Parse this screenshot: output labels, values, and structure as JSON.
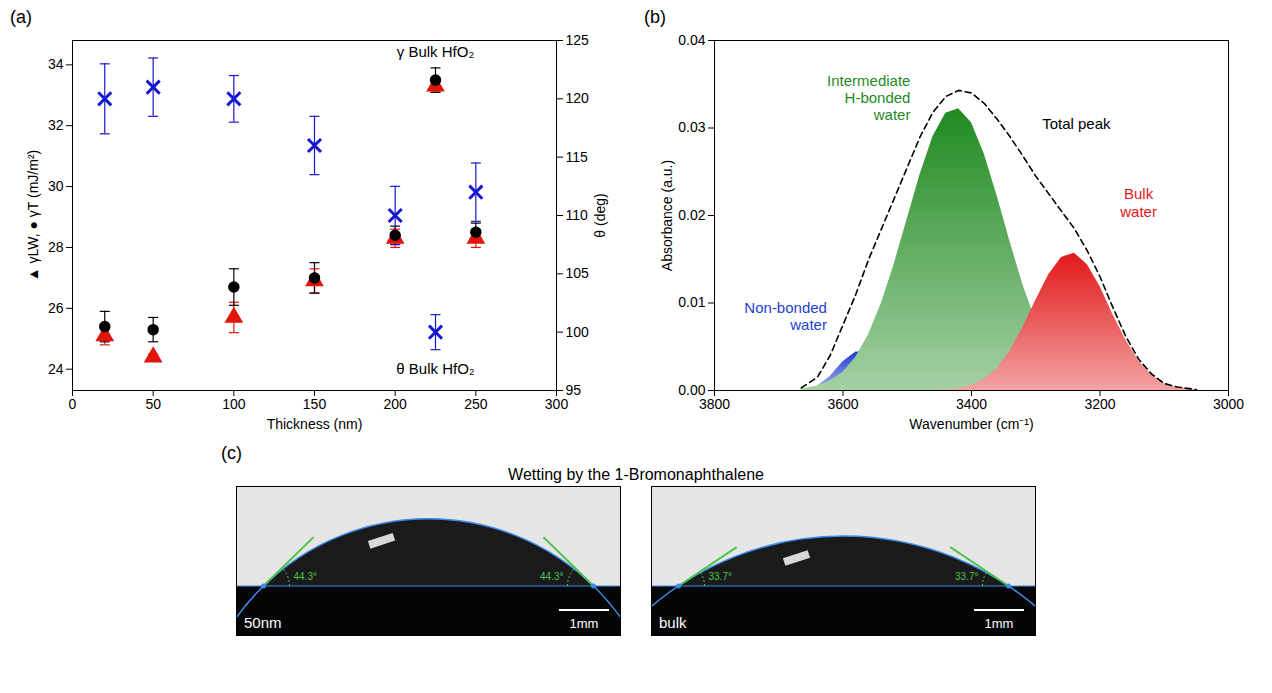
{
  "chart_data": [
    {
      "panel": "(a)",
      "type": "scatter",
      "x_label": "Thickness (nm)",
      "y_label": "▲ γLW, ● γT (mJ/m²)",
      "y2_label": "θ (deg)",
      "xlim": [
        0,
        300
      ],
      "xticks": [
        0,
        50,
        100,
        150,
        200,
        250,
        300
      ],
      "ylim": [
        23.3,
        34.8
      ],
      "yticks": [
        24,
        26,
        28,
        30,
        32,
        34
      ],
      "y2lim": [
        95,
        125
      ],
      "y2ticks": [
        95,
        100,
        105,
        110,
        115,
        120,
        125
      ],
      "grid": false,
      "x": [
        20,
        50,
        100,
        150,
        200,
        225,
        250
      ],
      "series": [
        {
          "name": "γLW",
          "color": "#e2150b",
          "marker": "triangle",
          "values": [
            25.1,
            24.4,
            25.7,
            26.9,
            28.3,
            33.3,
            28.3
          ],
          "errors": [
            0.3,
            0.1,
            0.5,
            0.4,
            0.3,
            0.2,
            0.3
          ]
        },
        {
          "name": "γT",
          "color": "#000000",
          "marker": "circle",
          "values": [
            25.4,
            25.3,
            26.7,
            27.0,
            28.4,
            33.5,
            28.5
          ],
          "errors": [
            0.5,
            0.4,
            0.6,
            0.5,
            0.3,
            0.4,
            0.3
          ]
        },
        {
          "name": "θ",
          "color": "#1717d0",
          "marker": "times",
          "axis": "y2",
          "values": [
            120,
            121,
            120,
            116,
            110,
            100,
            112
          ],
          "errors": [
            3,
            2.5,
            2,
            2.5,
            2.5,
            1.5,
            2.5
          ]
        }
      ],
      "annotations": [
        {
          "text": "γ Bulk HfO₂",
          "x": 225,
          "y": 34.4
        },
        {
          "text": "θ Bulk HfO₂",
          "x": 225,
          "y": 96.8,
          "axis": "y2"
        }
      ]
    },
    {
      "panel": "(b)",
      "type": "area",
      "x_label": "Wavenumber (cm⁻¹)",
      "y_label": "Absorbance (a.u.)",
      "xlim": [
        3800,
        3000
      ],
      "xticks": [
        3800,
        3600,
        3400,
        3200,
        3000
      ],
      "ylim": [
        0,
        0.04
      ],
      "yticks": [
        {
          "value": 0,
          "label": "0.00"
        },
        {
          "value": 0.01,
          "label": "0.01"
        },
        {
          "value": 0.02,
          "label": "0.02"
        },
        {
          "value": 0.03,
          "label": "0.03"
        },
        {
          "value": 0.04,
          "label": "0.04"
        }
      ],
      "grid": false,
      "x": [
        3665,
        3640,
        3620,
        3600,
        3580,
        3560,
        3540,
        3520,
        3500,
        3480,
        3460,
        3440,
        3420,
        3400,
        3380,
        3360,
        3340,
        3320,
        3300,
        3280,
        3260,
        3240,
        3220,
        3200,
        3180,
        3160,
        3140,
        3120,
        3100,
        3080,
        3050
      ],
      "series": [
        {
          "name": "Non-bonded water",
          "type": "area",
          "color": "#1f3fd0",
          "values": [
            0,
            0.0005,
            0.0016,
            0.0033,
            0.0044,
            0.0044,
            0.0033,
            0.0017,
            0.0006,
            0.0001,
            null,
            null,
            null,
            null,
            null,
            null,
            null,
            null,
            null,
            null,
            null,
            null,
            null,
            null,
            null,
            null,
            null,
            null,
            null,
            null,
            null
          ]
        },
        {
          "name": "Intermediate H-bonded water",
          "type": "area",
          "color": "#1f8a1f",
          "values": [
            0.0002,
            0.0005,
            0.0011,
            0.0021,
            0.0038,
            0.0064,
            0.01,
            0.0145,
            0.0196,
            0.0247,
            0.029,
            0.0317,
            0.0322,
            0.0306,
            0.027,
            0.0222,
            0.017,
            0.0121,
            0.008,
            0.005,
            0.0029,
            0.0015,
            0.0008,
            0.0004,
            0.0002,
            null,
            null,
            null,
            null,
            null,
            null
          ]
        },
        {
          "name": "Bulk water",
          "type": "area",
          "color": "#e21818",
          "values": [
            null,
            null,
            null,
            null,
            null,
            null,
            null,
            null,
            null,
            null,
            0,
            0.0001,
            0.0002,
            0.0006,
            0.0013,
            0.0025,
            0.0045,
            0.0072,
            0.0103,
            0.0132,
            0.0152,
            0.0157,
            0.0144,
            0.0119,
            0.0087,
            0.0058,
            0.0034,
            0.0018,
            0.0008,
            0.0004,
            0.0001
          ]
        },
        {
          "name": "Total peak",
          "type": "line",
          "line_style": "dashed",
          "color": "#000000",
          "values": [
            0.0003,
            0.0015,
            0.004,
            0.0075,
            0.011,
            0.015,
            0.0185,
            0.022,
            0.0255,
            0.029,
            0.0318,
            0.0336,
            0.0343,
            0.034,
            0.0328,
            0.031,
            0.029,
            0.0268,
            0.0245,
            0.0225,
            0.0205,
            0.0185,
            0.016,
            0.013,
            0.0095,
            0.0062,
            0.0036,
            0.0019,
            0.0008,
            0.0004,
            0.0001
          ]
        }
      ],
      "annotations": [
        {
          "text": "Non-bonded\nwater",
          "x": 3625,
          "y": 0.0085,
          "color": "#1f3fd0",
          "anchor": "end"
        },
        {
          "text": "Intermediate\nH-bonded\nwater",
          "x": 3495,
          "y": 0.0335,
          "color": "#1f8a1f",
          "anchor": "end"
        },
        {
          "text": "Total peak",
          "x": 3290,
          "y": 0.0305,
          "color": "#000000",
          "anchor": "start"
        },
        {
          "text": "Bulk\nwater",
          "x": 3140,
          "y": 0.0215,
          "color": "#e21818",
          "anchor": "middle"
        }
      ]
    }
  ],
  "photos": {
    "panel": "(c)",
    "title": "Wetting by the 1-Bromonaphthalene",
    "scale_bar": "1mm",
    "images": [
      {
        "label": "50nm",
        "contact_angle": 44.3,
        "angle_label": "44.3°"
      },
      {
        "label": "bulk",
        "contact_angle": 33.7,
        "angle_label": "33.7°"
      }
    ]
  }
}
